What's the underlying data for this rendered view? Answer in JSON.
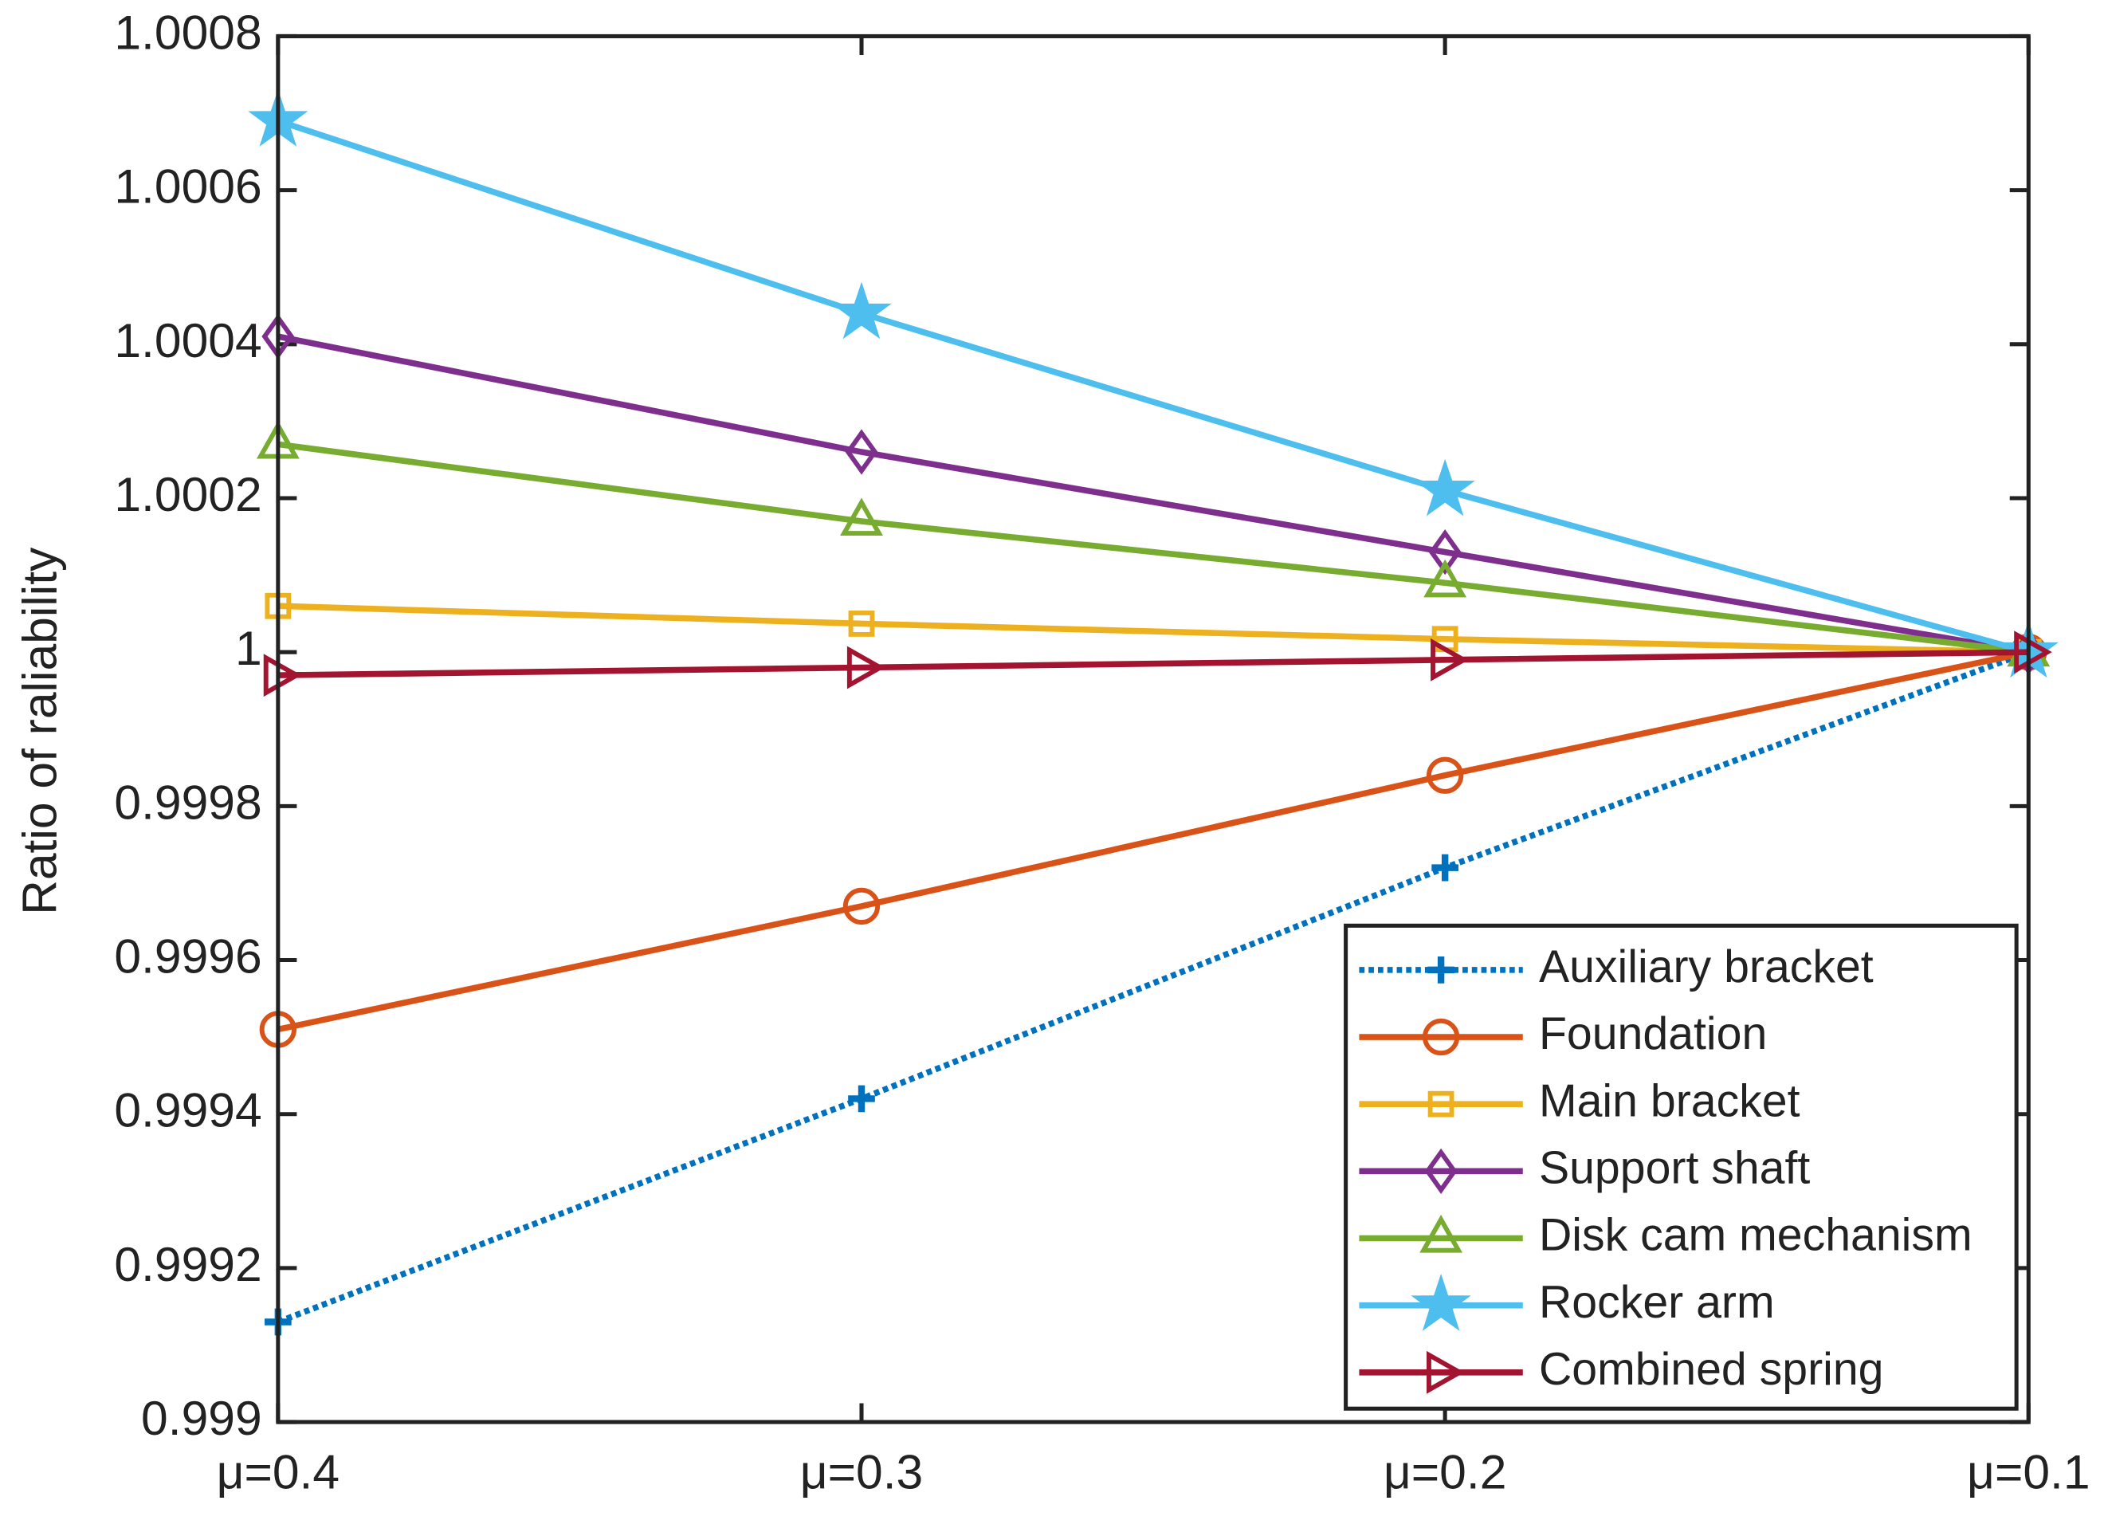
{
  "chart_data": {
    "type": "line",
    "ylabel": "Ratio of raliability",
    "categories": [
      "μ=0.4",
      "μ=0.3",
      "μ=0.2",
      "μ=0.1"
    ],
    "ylim": [
      0.999,
      1.0008
    ],
    "yticks": [
      0.999,
      0.9992,
      0.9994,
      0.9996,
      0.9998,
      1,
      1.0002,
      1.0004,
      1.0006,
      1.0008
    ],
    "legend_position": "lower-right",
    "series": [
      {
        "name": "Auxiliary bracket",
        "color": "#0072BD",
        "marker": "plus",
        "line_style": "dotted",
        "values": [
          0.99913,
          0.99942,
          0.99972,
          1
        ]
      },
      {
        "name": "Foundation",
        "color": "#D95319",
        "marker": "circle",
        "line_style": "solid",
        "values": [
          0.99951,
          0.99967,
          0.99984,
          1
        ]
      },
      {
        "name": "Main bracket",
        "color": "#EDB120",
        "marker": "square",
        "line_style": "solid",
        "values": [
          1.00006,
          1.000037,
          1.000017,
          1
        ]
      },
      {
        "name": "Support shaft",
        "color": "#7E2F8E",
        "marker": "diamond",
        "line_style": "solid",
        "values": [
          1.00041,
          1.00026,
          1.00013,
          1
        ]
      },
      {
        "name": "Disk cam mechanism",
        "color": "#77AC30",
        "marker": "triangle",
        "line_style": "solid",
        "values": [
          1.00027,
          1.00017,
          1.00009,
          1
        ]
      },
      {
        "name": "Rocker arm",
        "color": "#4DBEEE",
        "marker": "star",
        "line_style": "solid",
        "values": [
          1.00069,
          1.00044,
          1.00021,
          1
        ]
      },
      {
        "name": "Combined spring",
        "color": "#A2142F",
        "marker": "triangle-right",
        "line_style": "solid",
        "values": [
          0.99997,
          0.99998,
          0.99999,
          1
        ]
      }
    ]
  }
}
